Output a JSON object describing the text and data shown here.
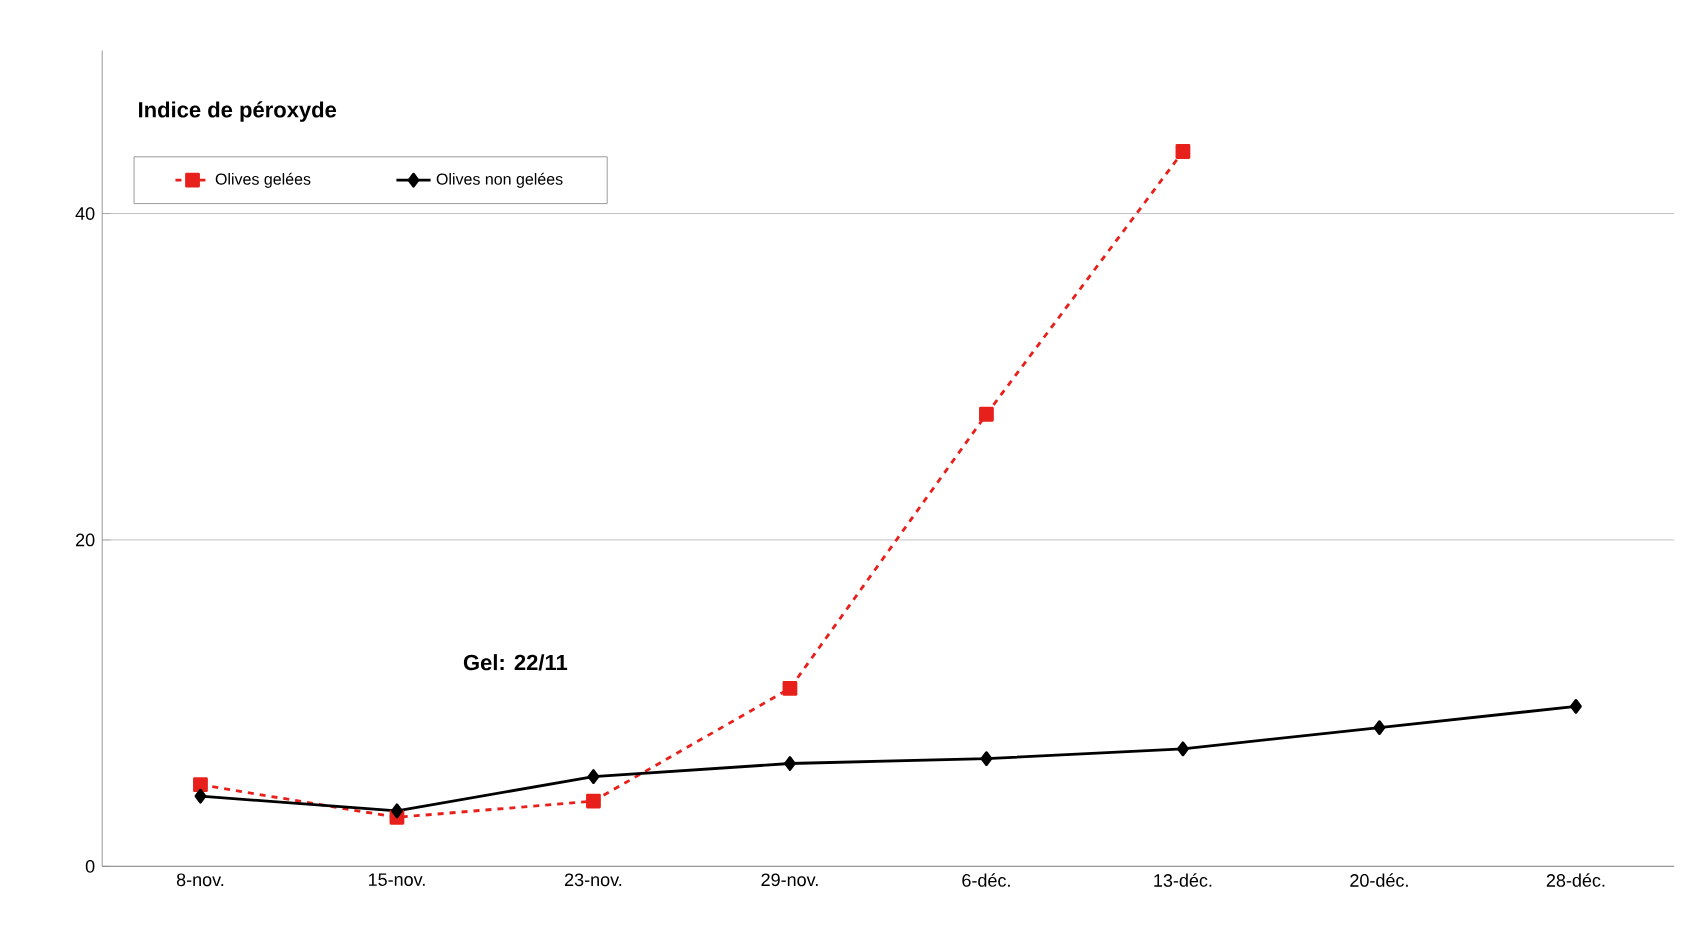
{
  "chart_data": {
    "type": "line",
    "title": "Indice de péroxyde",
    "categories": [
      "8-nov.",
      "15-nov.",
      "23-nov.",
      "29-nov.",
      "6-déc.",
      "13-déc.",
      "20-déc.",
      "28-déc."
    ],
    "series": [
      {
        "name": "Olives gelées",
        "color": "#e8201c",
        "marker": "square",
        "line_style": "dashed",
        "values": [
          5.0,
          3.0,
          4.0,
          10.9,
          27.7,
          43.8,
          null,
          null
        ]
      },
      {
        "name": "Olives non gelées",
        "color": "#000000",
        "marker": "diamond",
        "line_style": "solid",
        "values": [
          4.3,
          3.4,
          5.5,
          6.3,
          6.6,
          7.2,
          8.5,
          9.8
        ]
      }
    ],
    "ylim": [
      0,
      50
    ],
    "yticks": [
      0,
      20,
      40
    ],
    "grid": "y",
    "legend": "top left",
    "annotations": [
      "Gel: 22/11"
    ]
  }
}
